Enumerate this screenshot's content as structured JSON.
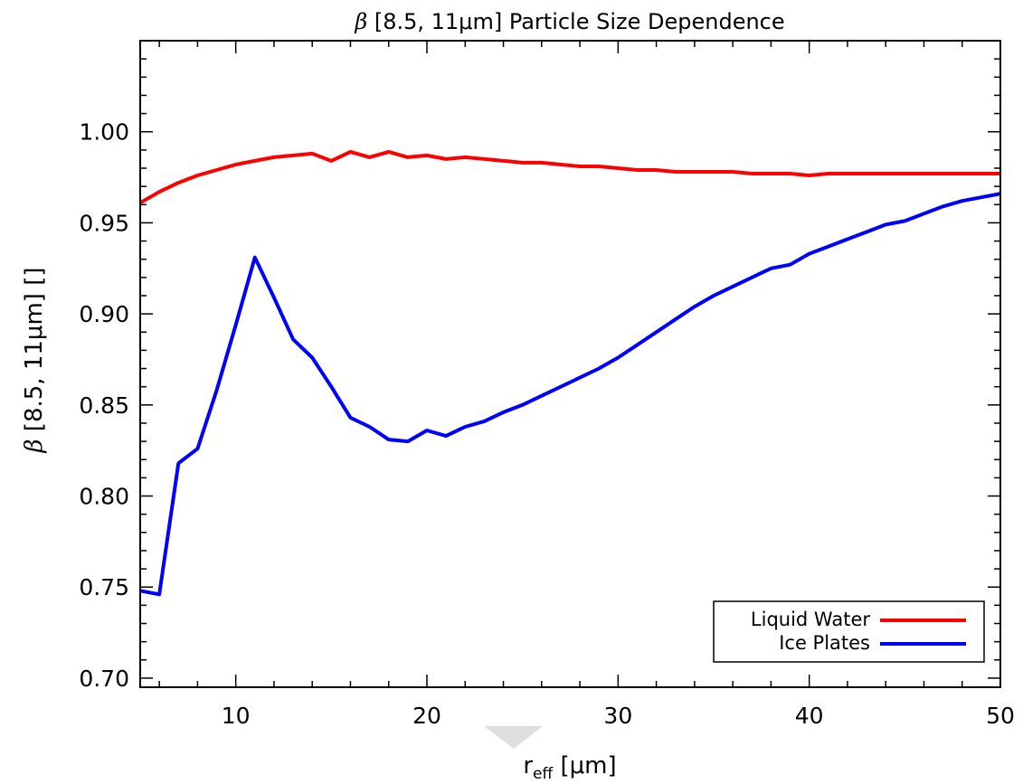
{
  "chart_data": {
    "type": "line",
    "title_prefix": "β",
    "title_rest": " [8.5, 11μm] Particle Size Dependence",
    "ylabel_prefix": "β",
    "ylabel_rest": " [8.5, 11μm] []",
    "xlabel_base": "r",
    "xlabel_sub": "eff",
    "xlabel_rest": " [μm]",
    "xlim": [
      5,
      50
    ],
    "ylim": [
      0.695,
      1.05
    ],
    "xticks": [
      10,
      20,
      30,
      40,
      50
    ],
    "xtick_labels": [
      "10",
      "20",
      "30",
      "40",
      "50"
    ],
    "yticks": [
      0.7,
      0.75,
      0.8,
      0.85,
      0.9,
      0.95,
      1.0
    ],
    "ytick_labels": [
      "0.70",
      "0.75",
      "0.80",
      "0.85",
      "0.90",
      "0.95",
      "1.00"
    ],
    "legend_position": "bottom-right",
    "series": [
      {
        "name": "Liquid Water",
        "color": "#ff0000",
        "x": [
          5,
          6,
          7,
          8,
          9,
          10,
          11,
          12,
          13,
          14,
          15,
          16,
          17,
          18,
          19,
          20,
          21,
          22,
          23,
          24,
          25,
          26,
          27,
          28,
          29,
          30,
          31,
          32,
          33,
          34,
          35,
          36,
          37,
          38,
          39,
          40,
          41,
          42,
          43,
          44,
          45,
          46,
          47,
          48,
          49,
          50
        ],
        "values": [
          0.961,
          0.967,
          0.972,
          0.976,
          0.979,
          0.982,
          0.984,
          0.986,
          0.987,
          0.988,
          0.984,
          0.989,
          0.986,
          0.989,
          0.986,
          0.987,
          0.985,
          0.986,
          0.985,
          0.984,
          0.983,
          0.983,
          0.982,
          0.981,
          0.981,
          0.98,
          0.979,
          0.979,
          0.978,
          0.978,
          0.978,
          0.978,
          0.977,
          0.977,
          0.977,
          0.976,
          0.977,
          0.977,
          0.977,
          0.977,
          0.977,
          0.977,
          0.977,
          0.977,
          0.977,
          0.977
        ]
      },
      {
        "name": "Ice Plates",
        "color": "#0000ff",
        "x": [
          5,
          6,
          7,
          8,
          9,
          10,
          11,
          12,
          13,
          14,
          15,
          16,
          17,
          18,
          19,
          20,
          21,
          22,
          23,
          24,
          25,
          26,
          27,
          28,
          29,
          30,
          31,
          32,
          33,
          34,
          35,
          36,
          37,
          38,
          39,
          40,
          41,
          42,
          43,
          44,
          45,
          46,
          47,
          48,
          49,
          50
        ],
        "values": [
          0.748,
          0.746,
          0.818,
          0.826,
          0.858,
          0.894,
          0.931,
          0.909,
          0.886,
          0.876,
          0.86,
          0.843,
          0.838,
          0.831,
          0.83,
          0.836,
          0.833,
          0.838,
          0.841,
          0.846,
          0.85,
          0.855,
          0.86,
          0.865,
          0.87,
          0.876,
          0.883,
          0.89,
          0.897,
          0.904,
          0.91,
          0.915,
          0.92,
          0.925,
          0.927,
          0.933,
          0.937,
          0.941,
          0.945,
          0.949,
          0.951,
          0.955,
          0.959,
          0.962,
          0.964,
          0.966
        ]
      }
    ]
  }
}
